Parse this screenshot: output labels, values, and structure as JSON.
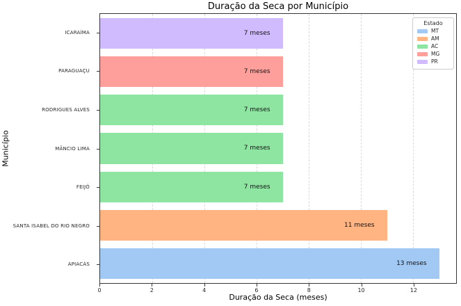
{
  "chart_data": {
    "type": "bar",
    "orientation": "horizontal",
    "title": "Duração da Seca por Município",
    "xlabel": "Duração da Seca (meses)",
    "ylabel": "Município",
    "xlim": [
      0,
      13.65
    ],
    "xticks": [
      0,
      2,
      4,
      6,
      8,
      10,
      12
    ],
    "grid": "vertical dashed at major x ticks",
    "categories": [
      "ICARAÍMA",
      "PARAGUAÇU",
      "RODRIGUES ALVES",
      "MÂNCIO LIMA",
      "FEIJÓ",
      "SANTA ISABEL DO RIO NEGRO",
      "APIACÁS"
    ],
    "values": [
      7,
      7,
      7,
      7,
      7,
      11,
      13
    ],
    "bar_labels": [
      "7 meses",
      "7 meses",
      "7 meses",
      "7 meses",
      "7 meses",
      "11 meses",
      "13 meses"
    ],
    "states": [
      "PR",
      "MG",
      "AC",
      "AC",
      "AC",
      "AM",
      "MT"
    ],
    "state_colors": {
      "MT": "#a1c9f4",
      "AM": "#ffb482",
      "AC": "#8de5a1",
      "MG": "#ff9f9b",
      "PR": "#d0bbff"
    },
    "legend": {
      "title": "Estado",
      "position": "upper right",
      "entries": [
        {
          "label": "MT",
          "color": "#a1c9f4"
        },
        {
          "label": "AM",
          "color": "#ffb482"
        },
        {
          "label": "AC",
          "color": "#8de5a1"
        },
        {
          "label": "MG",
          "color": "#ff9f9b"
        },
        {
          "label": "PR",
          "color": "#d0bbff"
        }
      ]
    }
  }
}
